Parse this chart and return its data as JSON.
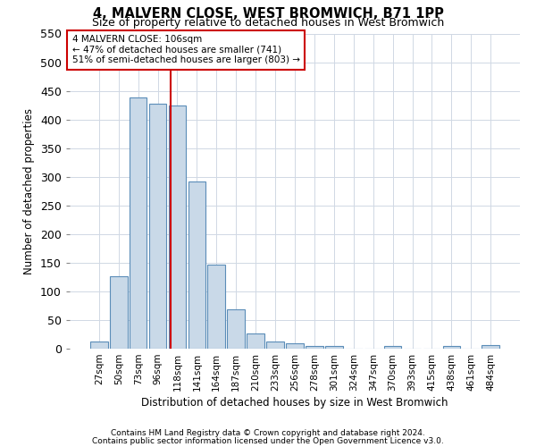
{
  "title": "4, MALVERN CLOSE, WEST BROMWICH, B71 1PP",
  "subtitle": "Size of property relative to detached houses in West Bromwich",
  "xlabel": "Distribution of detached houses by size in West Bromwich",
  "ylabel": "Number of detached properties",
  "footnote1": "Contains HM Land Registry data © Crown copyright and database right 2024.",
  "footnote2": "Contains public sector information licensed under the Open Government Licence v3.0.",
  "bar_labels": [
    "27sqm",
    "50sqm",
    "73sqm",
    "96sqm",
    "118sqm",
    "141sqm",
    "164sqm",
    "187sqm",
    "210sqm",
    "233sqm",
    "256sqm",
    "278sqm",
    "301sqm",
    "324sqm",
    "347sqm",
    "370sqm",
    "393sqm",
    "415sqm",
    "438sqm",
    "461sqm",
    "484sqm"
  ],
  "bar_values": [
    13,
    127,
    438,
    427,
    425,
    292,
    146,
    69,
    27,
    12,
    9,
    5,
    5,
    0,
    0,
    4,
    0,
    0,
    4,
    0,
    6
  ],
  "bar_color": "#c9d9e8",
  "bar_edge_color": "#5b8db8",
  "vline_x": 3.65,
  "vline_color": "#cc0000",
  "ylim": [
    0,
    550
  ],
  "yticks": [
    0,
    50,
    100,
    150,
    200,
    250,
    300,
    350,
    400,
    450,
    500,
    550
  ],
  "annotation_text": "4 MALVERN CLOSE: 106sqm\n← 47% of detached houses are smaller (741)\n51% of semi-detached houses are larger (803) →",
  "annotation_box_color": "#ffffff",
  "annotation_box_edge_color": "#cc0000",
  "background_color": "#ffffff",
  "grid_color": "#d0d8e4",
  "figsize": [
    6.0,
    5.0
  ],
  "dpi": 100
}
